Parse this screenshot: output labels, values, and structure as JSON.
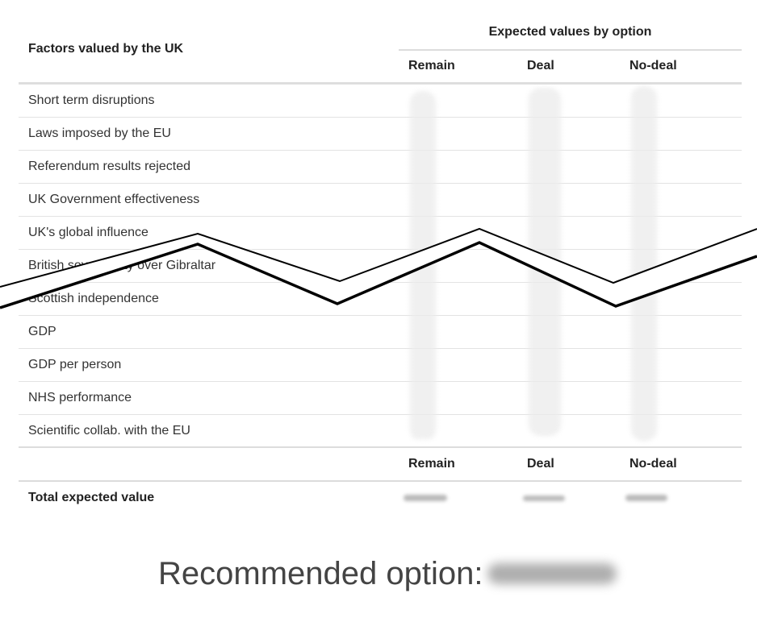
{
  "table": {
    "factor_header": "Factors valued by the UK",
    "group_header": "Expected values by option",
    "columns": [
      "Remain",
      "Deal",
      "No-deal"
    ],
    "factors": [
      "Short term disruptions",
      "Laws imposed by the EU",
      "Referendum results rejected",
      "UK Government effectiveness",
      "UK's global influence",
      "British sovereignty over Gibraltar",
      "Scottish independence",
      "GDP",
      "GDP per person",
      "NHS performance",
      "Scientific collab. with the EU"
    ],
    "total_label": "Total expected value"
  },
  "recommendation": {
    "label": "Recommended option:"
  }
}
